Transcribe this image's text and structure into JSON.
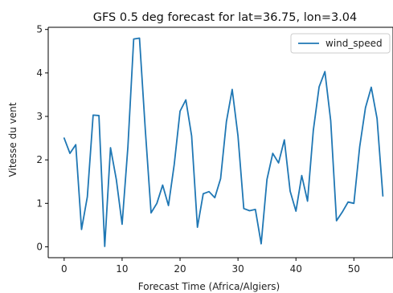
{
  "chart_data": {
    "type": "line",
    "title": "GFS 0.5 deg forecast for lat=36.75, lon=3.04",
    "xlabel": "Forecast Time (Africa/Algiers)",
    "ylabel": "Vitesse du vent",
    "xlim": [
      -2.75,
      56.75
    ],
    "ylim": [
      -0.25,
      5.05
    ],
    "xticks": [
      0,
      10,
      20,
      30,
      40,
      50
    ],
    "yticks": [
      0,
      1,
      2,
      3,
      4,
      5
    ],
    "grid": false,
    "legend_position": "upper right",
    "series": [
      {
        "name": "wind_speed",
        "color": "#1f77b4",
        "x": [
          0,
          1,
          2,
          3,
          4,
          5,
          6,
          7,
          8,
          9,
          10,
          11,
          12,
          13,
          14,
          15,
          16,
          17,
          18,
          19,
          20,
          21,
          22,
          23,
          24,
          25,
          26,
          27,
          28,
          29,
          30,
          31,
          32,
          33,
          34,
          35,
          36,
          37,
          38,
          39,
          40,
          41,
          42,
          43,
          44,
          45,
          46,
          47,
          48,
          49,
          50,
          51,
          52,
          53,
          54,
          55
        ],
        "values": [
          2.5,
          2.15,
          2.35,
          0.4,
          1.15,
          3.03,
          3.02,
          0.01,
          2.28,
          1.55,
          0.52,
          2.3,
          4.78,
          4.8,
          2.7,
          0.78,
          1.0,
          1.42,
          0.95,
          1.9,
          3.12,
          3.38,
          2.55,
          0.45,
          1.22,
          1.27,
          1.13,
          1.57,
          2.88,
          3.62,
          2.55,
          0.88,
          0.83,
          0.86,
          0.07,
          1.55,
          2.15,
          1.93,
          2.46,
          1.28,
          0.82,
          1.64,
          1.05,
          2.68,
          3.68,
          4.03,
          2.9,
          0.6,
          0.8,
          1.03,
          1.0,
          2.3,
          3.2,
          3.67,
          2.95,
          1.17
        ]
      }
    ]
  }
}
